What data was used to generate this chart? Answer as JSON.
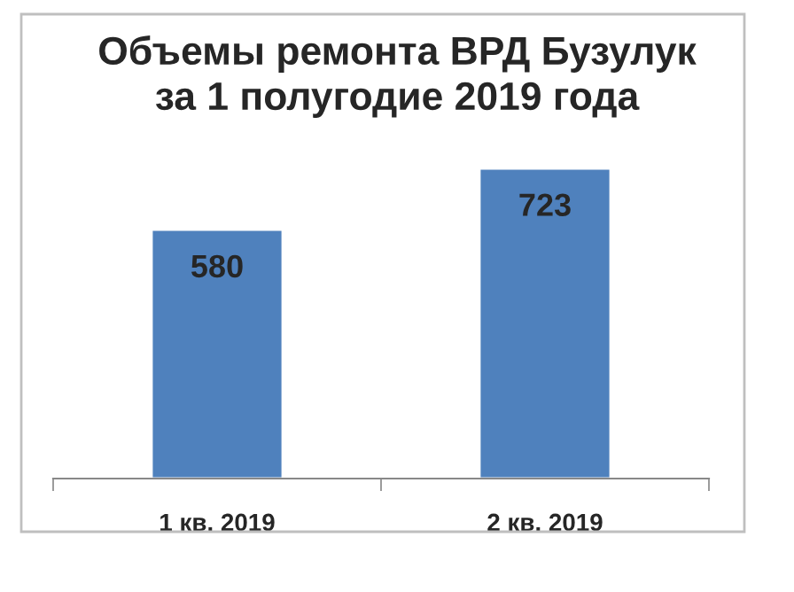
{
  "chart_data": {
    "type": "bar",
    "title": "Объемы ремонта ВРД Бузулук\nза 1 полугодие 2019 года",
    "categories": [
      "1 кв. 2019",
      "2 кв. 2019"
    ],
    "values": [
      580,
      723
    ],
    "color": "#4f81bd",
    "data_labels": true
  }
}
